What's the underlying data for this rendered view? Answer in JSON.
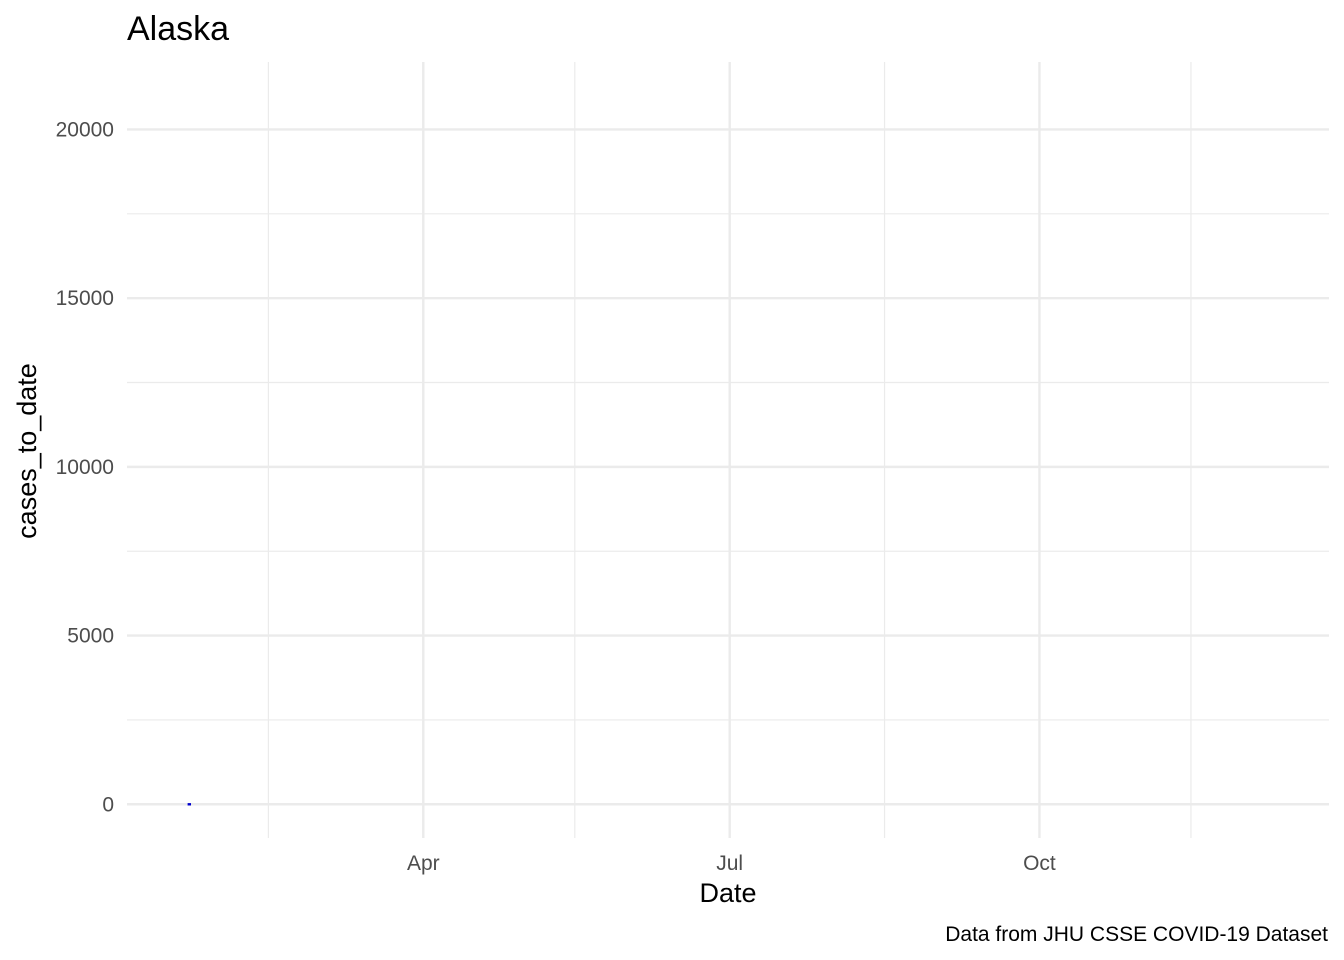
{
  "chart_data": {
    "type": "line",
    "title": "Alaska",
    "xlabel": "Date",
    "ylabel": "cases_to_date",
    "caption": "Data from JHU CSSE COVID-19 Dataset",
    "x_axis": {
      "type": "date",
      "range": [
        "2020-01-04",
        "2020-12-26"
      ],
      "major_ticks": [
        {
          "date": "2020-04-01",
          "label": "Apr"
        },
        {
          "date": "2020-07-01",
          "label": "Jul"
        },
        {
          "date": "2020-10-01",
          "label": "Oct"
        }
      ],
      "minor_ticks": [
        "2020-02-15",
        "2020-05-16",
        "2020-08-16",
        "2020-11-15"
      ]
    },
    "y_axis": {
      "range": [
        -1000,
        22000
      ],
      "major_ticks": [
        0,
        5000,
        10000,
        15000,
        20000
      ],
      "tick_labels": [
        "0",
        "5000",
        "10000",
        "15000",
        "20000"
      ],
      "minor_ticks": [
        2500,
        7500,
        12500,
        17500
      ]
    },
    "grid": true,
    "series": [
      {
        "color": "#0000cc",
        "points": [
          {
            "x": "2020-01-22",
            "y": 0
          },
          {
            "x": "2020-01-23",
            "y": 0
          }
        ]
      }
    ]
  }
}
